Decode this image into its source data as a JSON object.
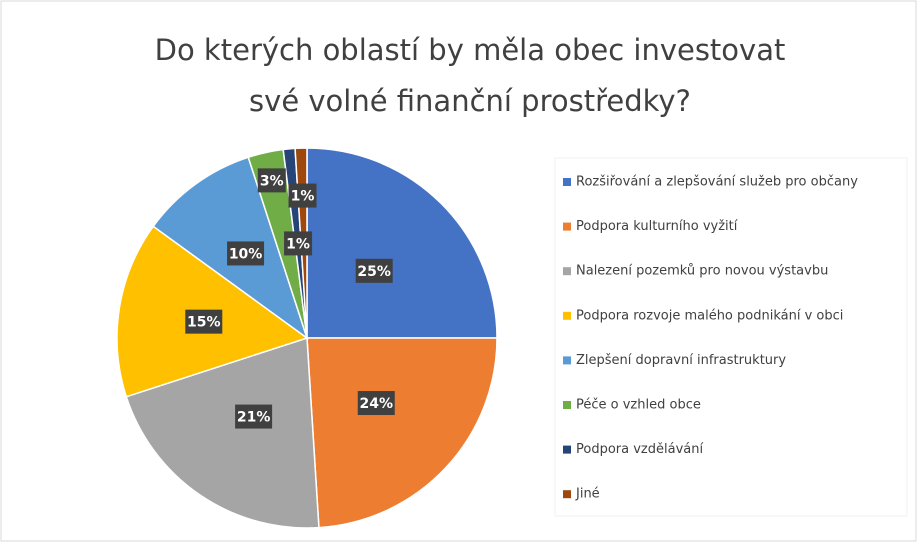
{
  "chart_data": {
    "type": "pie",
    "title": [
      "Do kterých oblastí by měla obec investovat",
      "své volné finanční prostředky?"
    ],
    "categories": [
      "Rozšiřování a zlepšování služeb pro občany",
      "Podpora kulturního vyžití",
      "Nalezení pozemků pro novou výstavbu",
      "Podpora rozvoje malého podnikání v obci",
      "Zlepšení dopravní infrastruktury",
      "Péče o vzhled obce",
      "Podpora vzdělávání",
      "Jiné"
    ],
    "values": [
      25,
      24,
      21,
      15,
      10,
      3,
      1,
      1
    ],
    "value_labels": [
      "25%",
      "24%",
      "21%",
      "15%",
      "10%",
      "3%",
      "1%",
      "1%"
    ],
    "colors": [
      "#4472c4",
      "#ed7d31",
      "#a5a5a5",
      "#ffc000",
      "#5b9bd5",
      "#70ad47",
      "#264478",
      "#9e480e"
    ],
    "legend": "right"
  }
}
